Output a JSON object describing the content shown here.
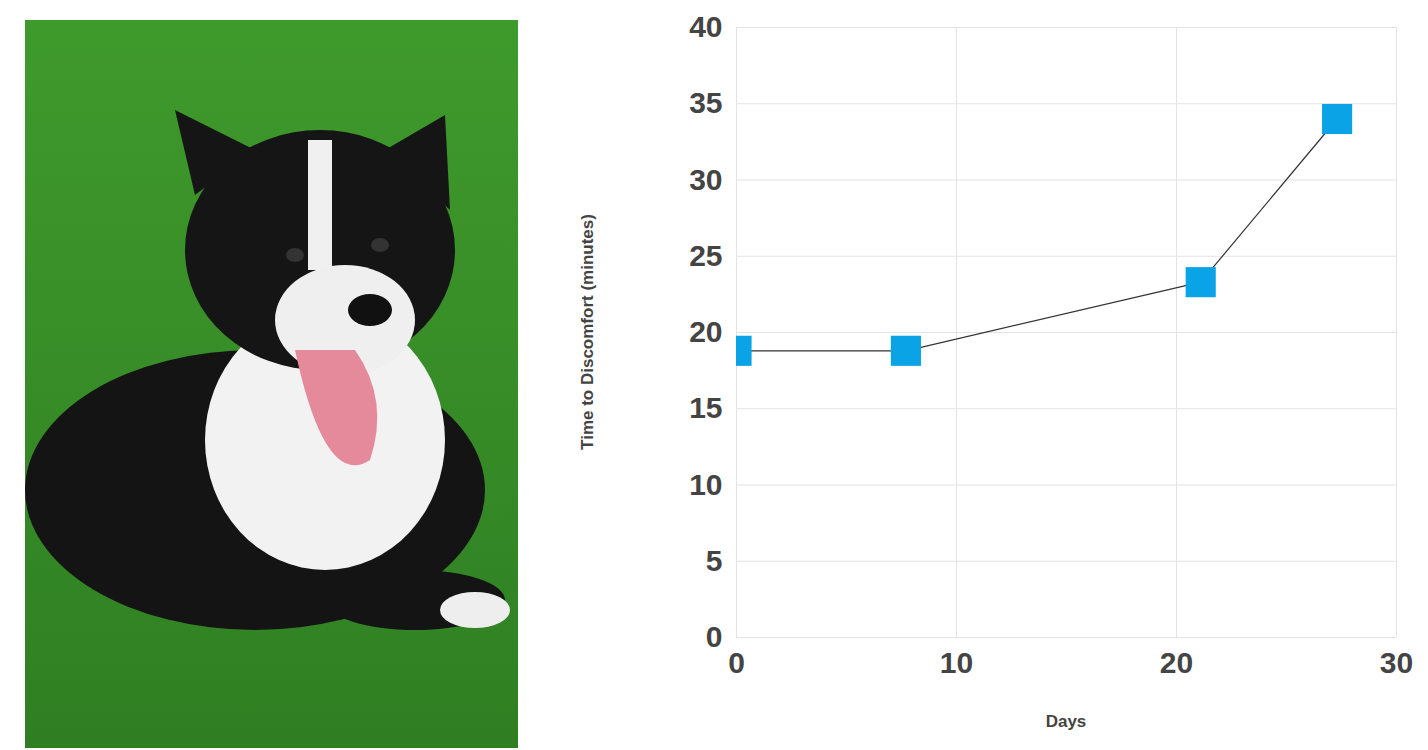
{
  "chart_data": {
    "type": "line",
    "x_label": "Days",
    "y_label": "Time to Discomfort (minutes)",
    "x": [
      0,
      7.7,
      21.1,
      27.3
    ],
    "values": [
      18.8,
      18.8,
      23.3,
      34
    ],
    "color": "#09a3e6",
    "marker": "square",
    "line_style": "solid",
    "xlim": [
      0,
      30
    ],
    "xticks": [
      0,
      10,
      20,
      30
    ],
    "ylim": [
      0,
      40
    ],
    "yticks": [
      0,
      5,
      10,
      15,
      20,
      25,
      30,
      35,
      40
    ],
    "grid": true
  }
}
